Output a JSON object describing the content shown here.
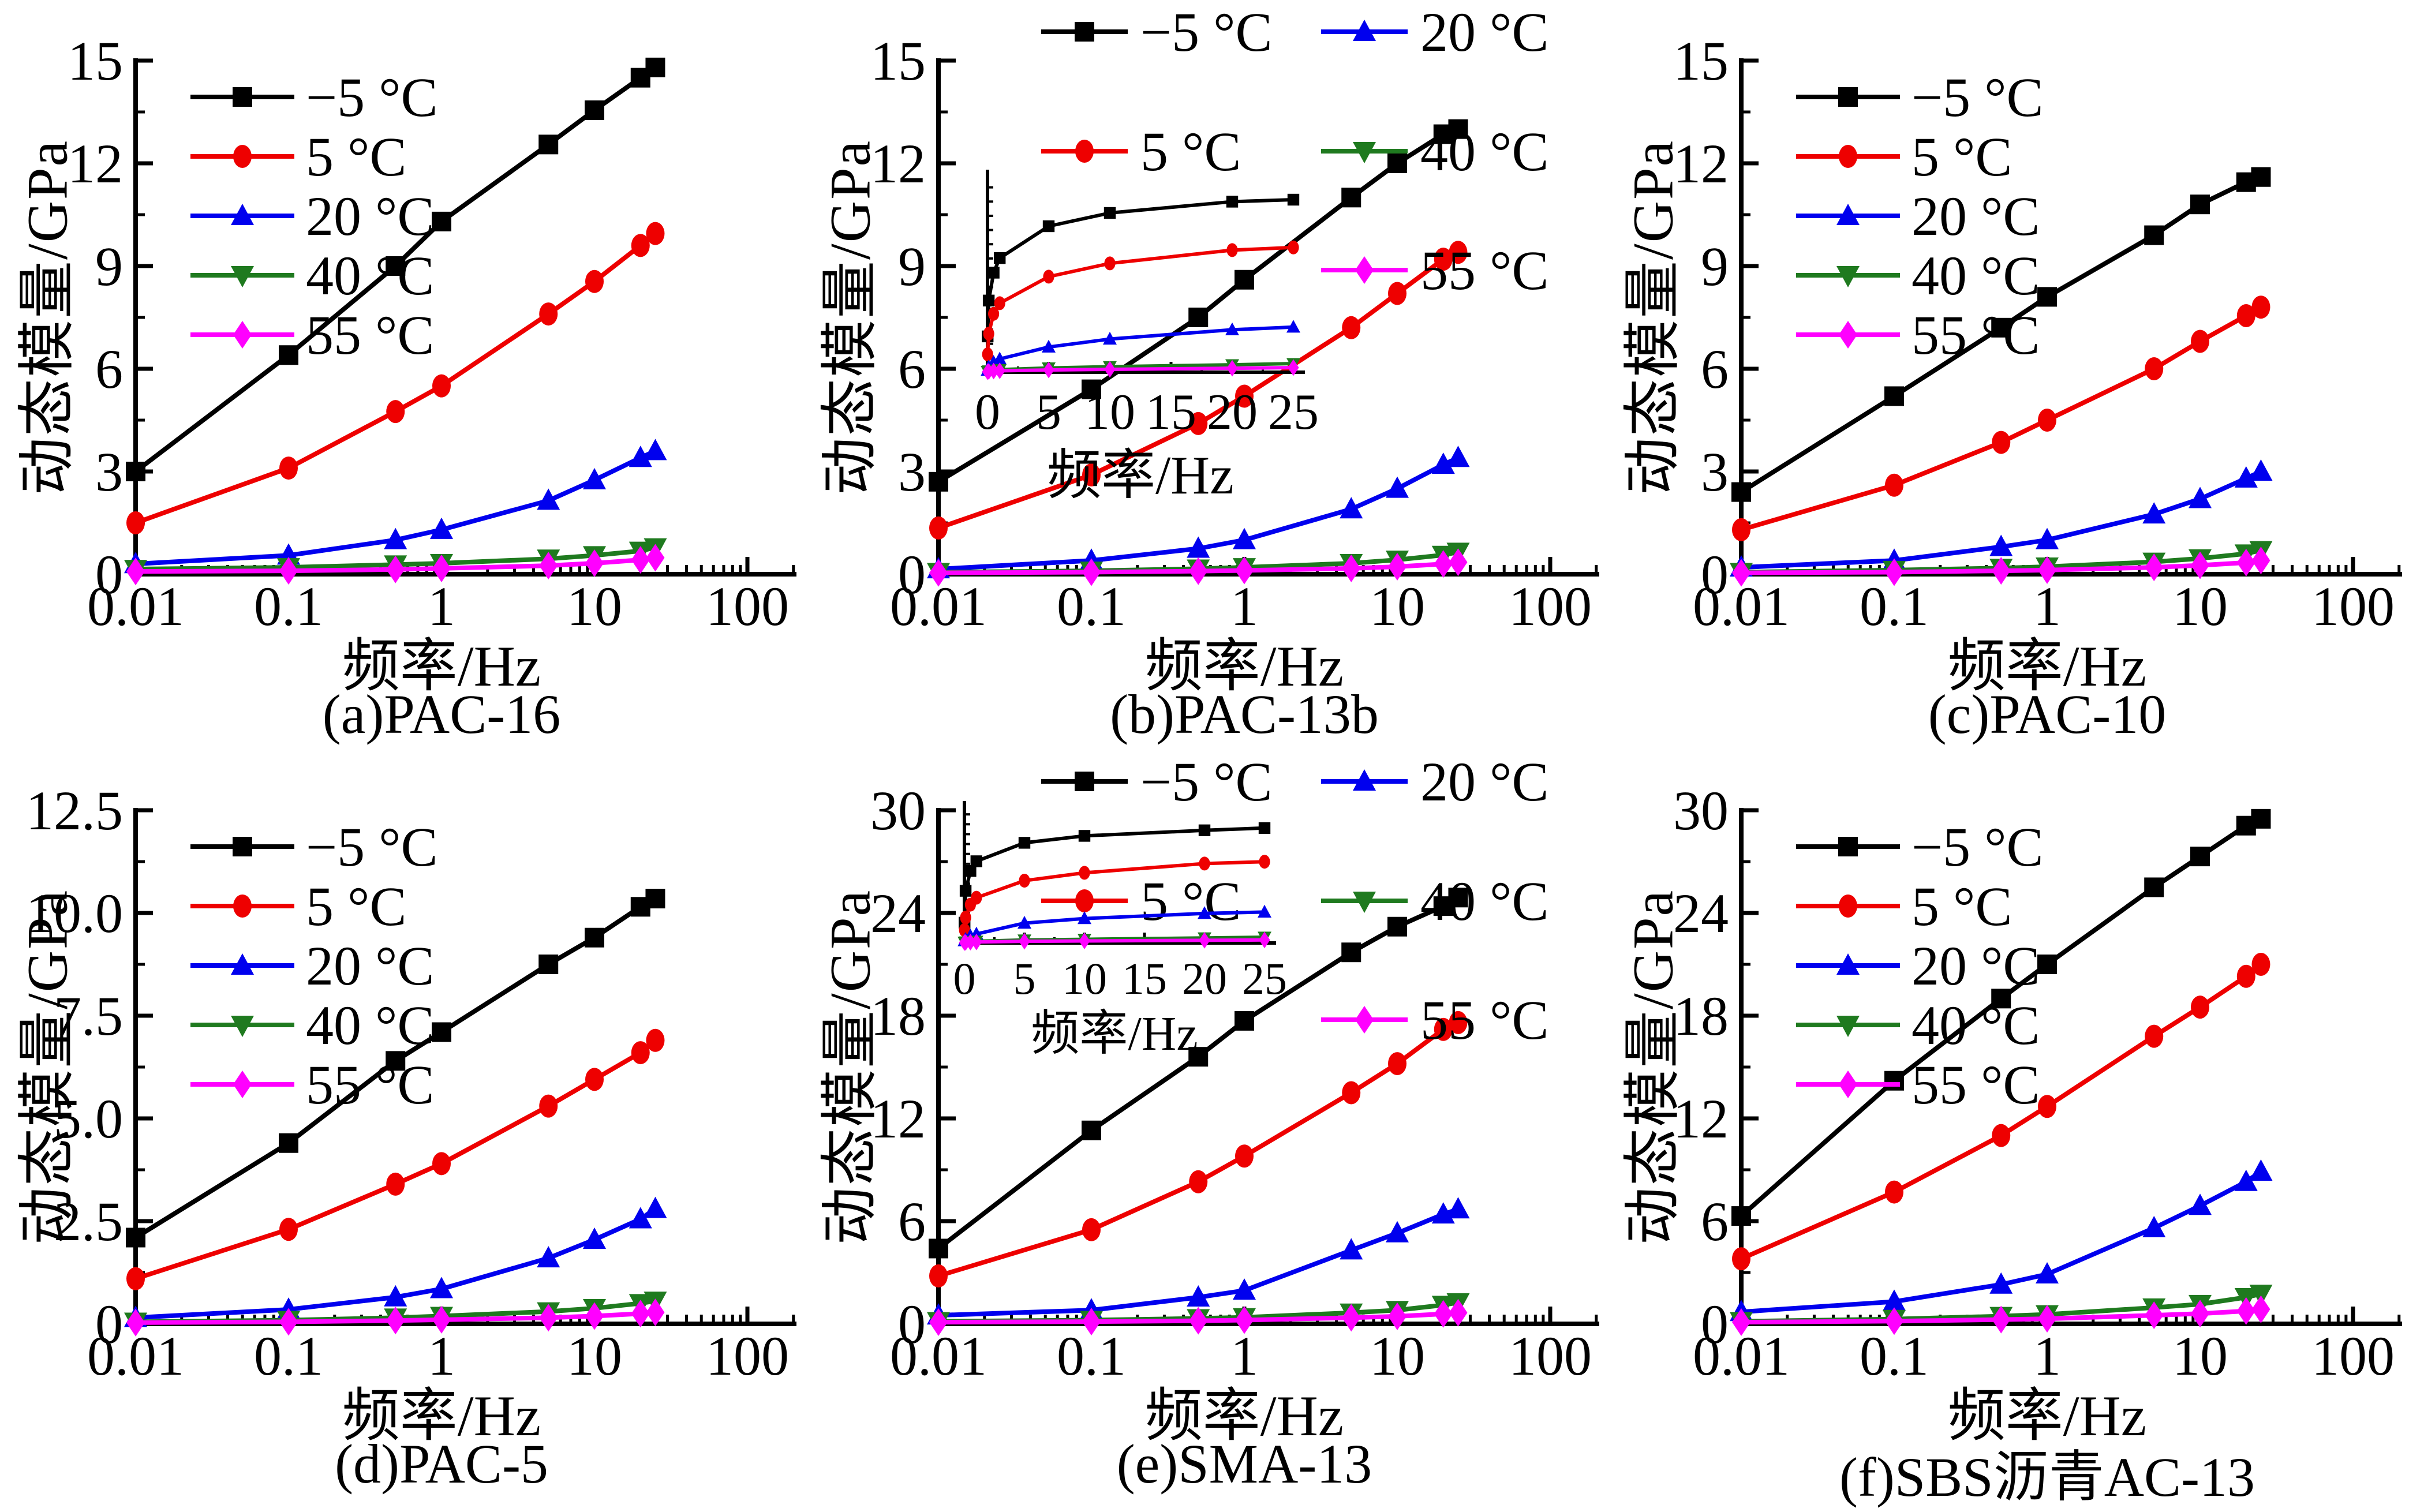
{
  "figure_title": "",
  "axis": {
    "xlabel": "频率/Hz",
    "ylabel": "动态模量/GPa",
    "x_scale": "log",
    "x_tick_labels": [
      "0.01",
      "0.1",
      "1",
      "10",
      "100"
    ],
    "x_tick_values": [
      0.01,
      0.1,
      1,
      10,
      100
    ]
  },
  "series_style": {
    "colors": [
      "#000000",
      "#ee0000",
      "#0000ee",
      "#1f7a1f",
      "#ff00ff"
    ],
    "markers": [
      "square",
      "circle",
      "triangle-up",
      "triangle-down",
      "diamond"
    ]
  },
  "chart_data": [
    {
      "id": "a",
      "type": "line",
      "caption": "(a)PAC-16",
      "xlabel": "频率/Hz",
      "ylabel": "动态模量/GPa",
      "x": [
        0.01,
        0.1,
        0.5,
        1,
        5,
        10,
        20,
        25
      ],
      "xlim": [
        0.01,
        100
      ],
      "ylim": [
        0,
        15
      ],
      "y_tick_values": [
        0,
        3,
        6,
        9,
        12,
        15
      ],
      "y_tick_labels": [
        "0",
        "3",
        "6",
        "9",
        "12",
        "15"
      ],
      "legend_position": "inside-top-left",
      "series": [
        {
          "name": "−5 ℃",
          "label": "−5 °C",
          "color": "#000000",
          "marker": "square",
          "values": [
            3.0,
            6.4,
            9.0,
            10.3,
            12.55,
            13.55,
            14.5,
            14.8
          ]
        },
        {
          "name": "5 ℃",
          "label": "5 °C",
          "color": "#ee0000",
          "marker": "circle",
          "values": [
            1.5,
            3.1,
            4.75,
            5.5,
            7.6,
            8.55,
            9.6,
            9.95
          ]
        },
        {
          "name": "20 ℃",
          "label": "20 °C",
          "color": "#0000ee",
          "marker": "triangle-up",
          "values": [
            0.3,
            0.55,
            1.0,
            1.3,
            2.15,
            2.75,
            3.4,
            3.6
          ]
        },
        {
          "name": "40 ℃",
          "label": "40 °C",
          "color": "#1f7a1f",
          "marker": "triangle-down",
          "values": [
            0.15,
            0.2,
            0.28,
            0.32,
            0.45,
            0.55,
            0.68,
            0.78
          ]
        },
        {
          "name": "55 ℃",
          "label": "55 °C",
          "color": "#ff00ff",
          "marker": "diamond",
          "values": [
            0.08,
            0.1,
            0.14,
            0.17,
            0.25,
            0.32,
            0.42,
            0.48
          ]
        }
      ]
    },
    {
      "id": "b",
      "type": "line",
      "caption": "(b)PAC-13b",
      "xlabel": "频率/Hz",
      "ylabel": "动态模量/GPa",
      "x": [
        0.01,
        0.1,
        0.5,
        1,
        5,
        10,
        20,
        25
      ],
      "xlim": [
        0.01,
        100
      ],
      "ylim": [
        0,
        15
      ],
      "y_tick_values": [
        0,
        3,
        6,
        9,
        12,
        15
      ],
      "y_tick_labels": [
        "0",
        "3",
        "6",
        "9",
        "12",
        "15"
      ],
      "legend_position": "above-two-column",
      "inset": {
        "pos": "mid",
        "x_ticks": [
          0,
          5,
          10,
          15,
          20,
          25
        ],
        "xlim": [
          0,
          25
        ],
        "xlabel": "频率/Hz"
      },
      "series": [
        {
          "name": "−5 ℃",
          "label": "−5 °C",
          "color": "#000000",
          "marker": "square",
          "values": [
            2.7,
            5.4,
            7.5,
            8.6,
            11.0,
            12.0,
            12.85,
            13.0
          ]
        },
        {
          "name": "5 ℃",
          "label": "5 °C",
          "color": "#ee0000",
          "marker": "circle",
          "values": [
            1.35,
            2.9,
            4.4,
            5.2,
            7.2,
            8.2,
            9.2,
            9.4
          ]
        },
        {
          "name": "20 ℃",
          "label": "20 °C",
          "color": "#0000ee",
          "marker": "triangle-up",
          "values": [
            0.15,
            0.4,
            0.75,
            1.0,
            1.9,
            2.5,
            3.2,
            3.4
          ]
        },
        {
          "name": "40 ℃",
          "label": "40 °C",
          "color": "#1f7a1f",
          "marker": "triangle-down",
          "values": [
            0.06,
            0.1,
            0.16,
            0.2,
            0.32,
            0.42,
            0.56,
            0.65
          ]
        },
        {
          "name": "55 ℃",
          "label": "55 °C",
          "color": "#ff00ff",
          "marker": "diamond",
          "values": [
            0.04,
            0.06,
            0.09,
            0.11,
            0.17,
            0.22,
            0.3,
            0.35
          ]
        }
      ]
    },
    {
      "id": "c",
      "type": "line",
      "caption": "(c)PAC-10",
      "xlabel": "频率/Hz",
      "ylabel": "动态模量/GPa",
      "x": [
        0.01,
        0.1,
        0.5,
        1,
        5,
        10,
        20,
        25
      ],
      "xlim": [
        0.01,
        100
      ],
      "ylim": [
        0,
        15
      ],
      "y_tick_values": [
        0,
        3,
        6,
        9,
        12,
        15
      ],
      "y_tick_labels": [
        "0",
        "3",
        "6",
        "9",
        "12",
        "15"
      ],
      "legend_position": "inside-top-left",
      "series": [
        {
          "name": "−5 ℃",
          "label": "−5 °C",
          "color": "#000000",
          "marker": "square",
          "values": [
            2.4,
            5.2,
            7.2,
            8.1,
            9.9,
            10.8,
            11.45,
            11.6
          ]
        },
        {
          "name": "5 ℃",
          "label": "5 °C",
          "color": "#ee0000",
          "marker": "circle",
          "values": [
            1.3,
            2.6,
            3.85,
            4.5,
            6.0,
            6.8,
            7.55,
            7.8
          ]
        },
        {
          "name": "20 ℃",
          "label": "20 °C",
          "color": "#0000ee",
          "marker": "triangle-up",
          "values": [
            0.2,
            0.4,
            0.8,
            1.0,
            1.75,
            2.2,
            2.8,
            3.0
          ]
        },
        {
          "name": "40 ℃",
          "label": "40 °C",
          "color": "#1f7a1f",
          "marker": "triangle-down",
          "values": [
            0.06,
            0.12,
            0.18,
            0.22,
            0.36,
            0.46,
            0.6,
            0.7
          ]
        },
        {
          "name": "55 ℃",
          "label": "55 °C",
          "color": "#ff00ff",
          "marker": "diamond",
          "values": [
            0.04,
            0.06,
            0.1,
            0.12,
            0.2,
            0.26,
            0.34,
            0.4
          ]
        }
      ]
    },
    {
      "id": "d",
      "type": "line",
      "caption": "(d)PAC-5",
      "xlabel": "频率/Hz",
      "ylabel": "动态模量/GPa",
      "x": [
        0.01,
        0.1,
        0.5,
        1,
        5,
        10,
        20,
        25
      ],
      "xlim": [
        0.01,
        100
      ],
      "ylim": [
        0,
        12.5
      ],
      "y_tick_values": [
        0,
        2.5,
        5.0,
        7.5,
        10.0,
        12.5
      ],
      "y_tick_labels": [
        "0",
        "2.5",
        "5.0",
        "7.5",
        "10.0",
        "12.5"
      ],
      "legend_position": "inside-top-left",
      "series": [
        {
          "name": "−5 ℃",
          "label": "−5 °C",
          "color": "#000000",
          "marker": "square",
          "values": [
            2.1,
            4.4,
            6.4,
            7.1,
            8.75,
            9.4,
            10.15,
            10.35
          ]
        },
        {
          "name": "5 ℃",
          "label": "5 °C",
          "color": "#ee0000",
          "marker": "circle",
          "values": [
            1.1,
            2.3,
            3.4,
            3.9,
            5.3,
            5.95,
            6.6,
            6.9
          ]
        },
        {
          "name": "20 ℃",
          "label": "20 °C",
          "color": "#0000ee",
          "marker": "triangle-up",
          "values": [
            0.15,
            0.35,
            0.65,
            0.85,
            1.6,
            2.05,
            2.55,
            2.8
          ]
        },
        {
          "name": "40 ℃",
          "label": "40 °C",
          "color": "#1f7a1f",
          "marker": "triangle-down",
          "values": [
            0.05,
            0.09,
            0.15,
            0.19,
            0.3,
            0.38,
            0.5,
            0.56
          ]
        },
        {
          "name": "55 ℃",
          "label": "55 °C",
          "color": "#ff00ff",
          "marker": "diamond",
          "values": [
            0.03,
            0.05,
            0.08,
            0.1,
            0.15,
            0.19,
            0.25,
            0.28
          ]
        }
      ]
    },
    {
      "id": "e",
      "type": "line",
      "caption": "(e)SMA-13",
      "xlabel": "频率/Hz",
      "ylabel": "动态模量/GPa",
      "x": [
        0.01,
        0.1,
        0.5,
        1,
        5,
        10,
        20,
        25
      ],
      "xlim": [
        0.01,
        100
      ],
      "ylim": [
        0,
        30
      ],
      "y_tick_values": [
        0,
        6,
        12,
        18,
        24,
        30
      ],
      "y_tick_labels": [
        "0",
        "6",
        "12",
        "18",
        "24",
        "30"
      ],
      "legend_position": "above-two-column",
      "inset": {
        "pos": "high",
        "x_ticks": [
          0,
          5,
          10,
          15,
          20,
          25
        ],
        "xlim": [
          0,
          25
        ],
        "xlabel": "频率/Hz"
      },
      "series": [
        {
          "name": "−5 ℃",
          "label": "−5 °C",
          "color": "#000000",
          "marker": "square",
          "values": [
            4.4,
            11.3,
            15.6,
            17.7,
            21.7,
            23.2,
            24.4,
            24.9
          ]
        },
        {
          "name": "5 ℃",
          "label": "5 °C",
          "color": "#ee0000",
          "marker": "circle",
          "values": [
            2.8,
            5.5,
            8.3,
            9.8,
            13.5,
            15.2,
            17.2,
            17.6
          ]
        },
        {
          "name": "20 ℃",
          "label": "20 °C",
          "color": "#0000ee",
          "marker": "triangle-up",
          "values": [
            0.5,
            0.8,
            1.55,
            1.95,
            4.3,
            5.3,
            6.4,
            6.7
          ]
        },
        {
          "name": "40 ℃",
          "label": "40 °C",
          "color": "#1f7a1f",
          "marker": "triangle-down",
          "values": [
            0.15,
            0.22,
            0.32,
            0.38,
            0.65,
            0.8,
            1.1,
            1.25
          ]
        },
        {
          "name": "55 ℃",
          "label": "55 °C",
          "color": "#ff00ff",
          "marker": "diamond",
          "values": [
            0.1,
            0.13,
            0.18,
            0.22,
            0.36,
            0.44,
            0.58,
            0.65
          ]
        }
      ]
    },
    {
      "id": "f",
      "type": "line",
      "caption": "(f)SBS沥青AC-13",
      "xlabel": "频率/Hz",
      "ylabel": "动态模量/GPa",
      "x": [
        0.01,
        0.1,
        0.5,
        1,
        5,
        10,
        20,
        25
      ],
      "xlim": [
        0.01,
        100
      ],
      "ylim": [
        0,
        30
      ],
      "y_tick_values": [
        0,
        6,
        12,
        18,
        24,
        30
      ],
      "y_tick_labels": [
        "0",
        "6",
        "12",
        "18",
        "24",
        "30"
      ],
      "legend_position": "inside-top-left",
      "series": [
        {
          "name": "−5 ℃",
          "label": "−5 °C",
          "color": "#000000",
          "marker": "square",
          "values": [
            6.3,
            14.2,
            19.0,
            21.0,
            25.5,
            27.3,
            29.1,
            29.5
          ]
        },
        {
          "name": "5 ℃",
          "label": "5 °C",
          "color": "#ee0000",
          "marker": "circle",
          "values": [
            3.8,
            7.7,
            11.0,
            12.7,
            16.8,
            18.5,
            20.3,
            21.0
          ]
        },
        {
          "name": "20 ℃",
          "label": "20 °C",
          "color": "#0000ee",
          "marker": "triangle-up",
          "values": [
            0.7,
            1.3,
            2.3,
            2.9,
            5.6,
            6.9,
            8.3,
            8.9
          ]
        },
        {
          "name": "40 ℃",
          "label": "40 °C",
          "color": "#1f7a1f",
          "marker": "triangle-down",
          "values": [
            0.15,
            0.28,
            0.45,
            0.55,
            0.95,
            1.15,
            1.55,
            1.75
          ]
        },
        {
          "name": "55 ℃",
          "label": "55 °C",
          "color": "#ff00ff",
          "marker": "diamond",
          "values": [
            0.1,
            0.16,
            0.25,
            0.3,
            0.5,
            0.6,
            0.75,
            0.85
          ]
        }
      ]
    }
  ]
}
